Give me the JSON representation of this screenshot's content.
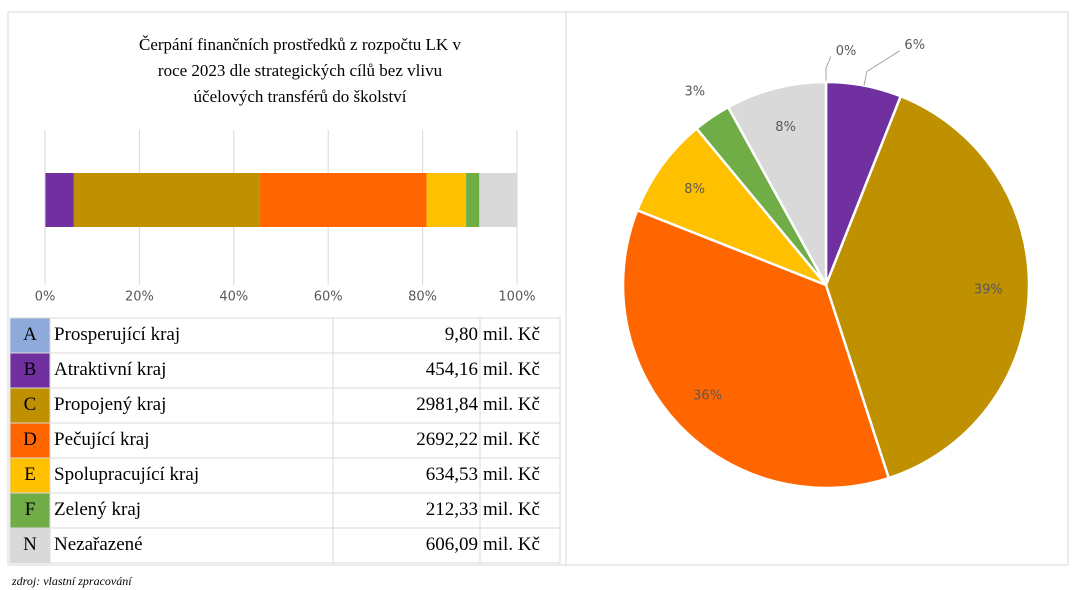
{
  "chart_data": [
    {
      "type": "bar",
      "orientation": "horizontal",
      "stacked": true,
      "title": [
        "Čerpání finančních prostředků z rozpočtu LK v",
        "roce 2023 dle strategických cílů bez vlivu",
        "účelových transférů do školství"
      ],
      "series": [
        {
          "color": "#8eaadb",
          "values": [
            0.13
          ]
        },
        {
          "color": "#7030a0",
          "values": [
            5.98
          ]
        },
        {
          "color": "#bf9000",
          "values": [
            39.28
          ]
        },
        {
          "color": "#ff6600",
          "values": [
            35.47
          ]
        },
        {
          "color": "#ffc000",
          "values": [
            8.36
          ]
        },
        {
          "color": "#70ad47",
          "values": [
            2.8
          ]
        },
        {
          "color": "#d9d9d9",
          "values": [
            7.98
          ]
        }
      ],
      "xlim": [
        0,
        100
      ],
      "xticks": [
        {
          "value": 0,
          "label": "0%"
        },
        {
          "value": 20,
          "label": "20%"
        },
        {
          "value": 40,
          "label": "40%"
        },
        {
          "value": 60,
          "label": "60%"
        },
        {
          "value": 80,
          "label": "80%"
        },
        {
          "value": 100,
          "label": "100%"
        }
      ],
      "grid": true
    },
    {
      "type": "pie",
      "values": [
        0,
        6,
        39,
        36,
        8,
        3,
        8
      ],
      "value_labels": [
        "0%",
        "6%",
        "39%",
        "36%",
        "8%",
        "3%",
        "8%"
      ],
      "colors": [
        "#8eaadb",
        "#7030a0",
        "#bf9000",
        "#ff6600",
        "#ffc000",
        "#70ad47",
        "#d9d9d9"
      ]
    }
  ],
  "table": {
    "rows": [
      [
        "A",
        "Prosperující kraj",
        "9,80",
        "mil. Kč"
      ],
      [
        "B",
        "Atraktivní kraj",
        "454,16",
        "mil. Kč"
      ],
      [
        "C",
        "Propojený kraj",
        "2981,84",
        "mil. Kč"
      ],
      [
        "D",
        "Pečující kraj",
        "2692,22",
        "mil. Kč"
      ],
      [
        "E",
        "Spolupracující kraj",
        "634,53",
        "mil. Kč"
      ],
      [
        "F",
        "Zelený kraj",
        "212,33",
        "mil. Kč"
      ],
      [
        "N",
        "Nezařazené",
        "606,09",
        "mil. Kč"
      ]
    ]
  },
  "source": "zdroj: vlastní zpracování"
}
